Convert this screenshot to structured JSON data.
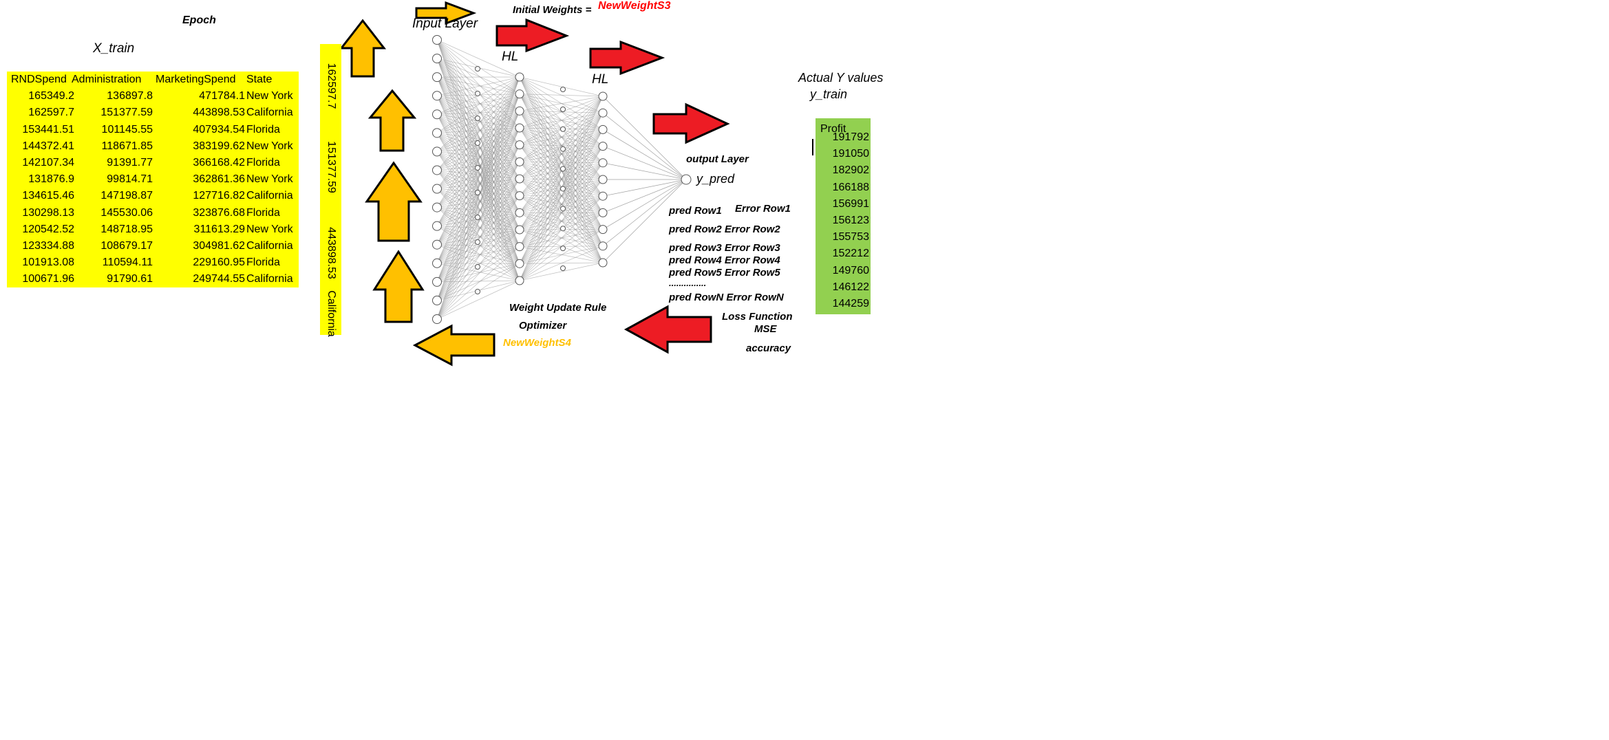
{
  "labels": {
    "epoch": "Epoch",
    "x_train": "X_train",
    "input_layer": "Input Layer",
    "initial_weights": "Initial Weights =",
    "new_weight_s3": "NewWeightS3",
    "hl1": "HL",
    "hl2": "HL",
    "output_layer": "output Layer",
    "y_pred": "y_pred",
    "actual_y": "Actual Y values",
    "y_train": "y_train",
    "weight_update_rule": "Weight Update Rule",
    "optimizer": "Optimizer",
    "new_weight_s4": "NewWeightS4",
    "loss_function": "Loss Function",
    "mse": "MSE",
    "accuracy": "accuracy"
  },
  "pred_errors": {
    "row1_pred": "pred Row1",
    "row1_err": "Error Row1",
    "row2": "pred Row2 Error Row2",
    "row3": "pred Row3 Error Row3",
    "row4": "pred Row4 Error Row4",
    "row5": "pred Row5 Error Row5",
    "dots": "...............",
    "rowN": "pred RowN Error RowN"
  },
  "xtrain_table": {
    "headers": [
      "RNDSpend",
      "Administration",
      "MarketingSpend",
      "State"
    ],
    "rows": [
      [
        "165349.2",
        "136897.8",
        "471784.1",
        "New York"
      ],
      [
        "162597.7",
        "151377.59",
        "443898.53",
        "California"
      ],
      [
        "153441.51",
        "101145.55",
        "407934.54",
        "Florida"
      ],
      [
        "144372.41",
        "118671.85",
        "383199.62",
        "New York"
      ],
      [
        "142107.34",
        "91391.77",
        "366168.42",
        "Florida"
      ],
      [
        "131876.9",
        "99814.71",
        "362861.36",
        "New York"
      ],
      [
        "134615.46",
        "147198.87",
        "127716.82",
        "California"
      ],
      [
        "130298.13",
        "145530.06",
        "323876.68",
        "Florida"
      ],
      [
        "120542.52",
        "148718.95",
        "311613.29",
        "New York"
      ],
      [
        "123334.88",
        "108679.17",
        "304981.62",
        "California"
      ],
      [
        "101913.08",
        "110594.11",
        "229160.95",
        "Florida"
      ],
      [
        "100671.96",
        "91790.61",
        "249744.55",
        "California"
      ]
    ]
  },
  "input_row_vertical": [
    "162597.7",
    "151377.59",
    "443898.53",
    "California"
  ],
  "ytrain_table": {
    "header": "Profit",
    "values": [
      "191792",
      "191050",
      "182902",
      "166188",
      "156991",
      "156123",
      "155753",
      "152212",
      "149760",
      "146122",
      "144259"
    ]
  },
  "colors": {
    "table_fill": "#ffff00",
    "profit_fill": "#92d050",
    "forward_arrow": "#ed1c24",
    "update_arrow": "#ffc000",
    "new_weight_s3_text": "#ff0000",
    "new_weight_s4_text": "#ffc000"
  }
}
